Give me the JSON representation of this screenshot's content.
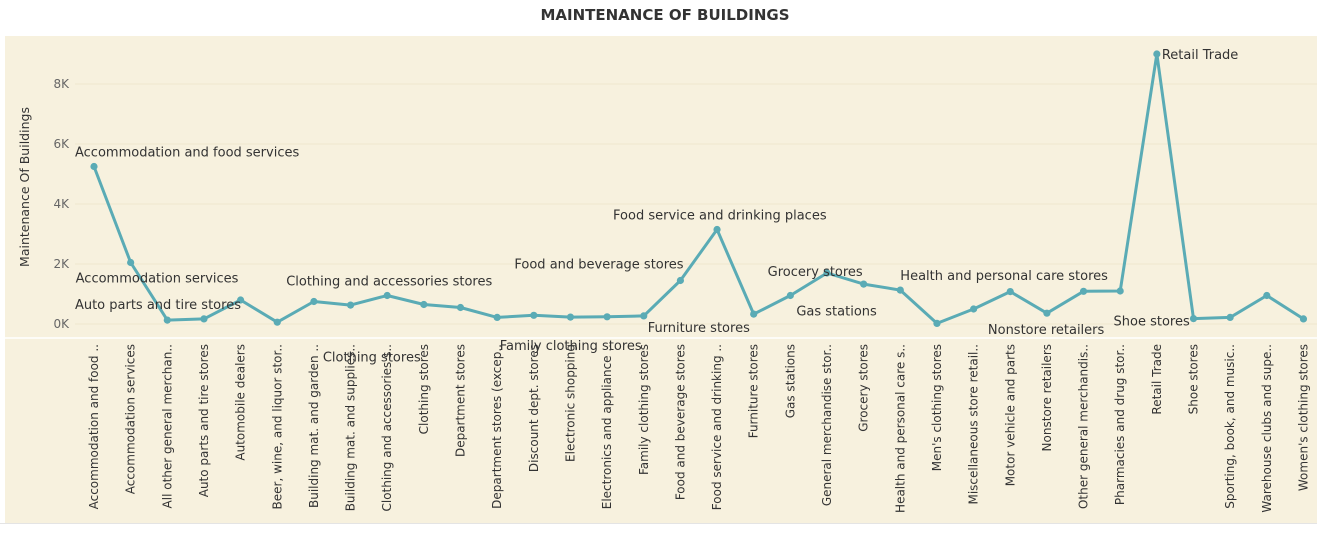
{
  "chart_data": {
    "type": "line",
    "title": "MAINTENANCE OF BUILDINGS",
    "xlabel": "",
    "ylabel": "Maintenance Of Buildings",
    "ylim": [
      -700,
      9300
    ],
    "yticks": [
      0,
      2000,
      4000,
      6000,
      8000
    ],
    "ytick_labels": [
      "0K",
      "2K",
      "4K",
      "6K",
      "8K"
    ],
    "grid": true,
    "line_color": "#5aabb5",
    "plot_background": "#f7f1de",
    "categories": [
      "Accommodation and food ..",
      "Accommodation services",
      "All other general merchan..",
      "Auto parts and tire stores",
      "Automobile dealers",
      "Beer, wine, and liquor stor..",
      "Building mat. and garden ..",
      "Building mat. and supplies..",
      "Clothing and accessories s..",
      "Clothing stores",
      "Department stores",
      "Department stores (excep..",
      "Discount dept. stores",
      "Electronic shopping",
      "Electronics and appliance ..",
      "Family clothing stores",
      "Food and beverage stores",
      "Food service and drinking ..",
      "Furniture stores",
      "Gas stations",
      "General merchandise stor..",
      "Grocery stores",
      "Health and personal care s..",
      "Men's clothing stores",
      "Miscellaneous store retail..",
      "Motor vehicle and parts",
      "Nonstore retailers",
      "Other general merchandis..",
      "Pharmacies and drug stor..",
      "Retail Trade",
      "Shoe stores",
      "Sporting, book, and music..",
      "Warehouse clubs and supe..",
      "Women's clothing stores"
    ],
    "values": [
      5250,
      2050,
      130,
      170,
      800,
      60,
      750,
      630,
      950,
      650,
      550,
      220,
      290,
      230,
      240,
      270,
      1450,
      3150,
      330,
      950,
      1700,
      1330,
      1130,
      20,
      500,
      1080,
      360,
      1090,
      1100,
      9000,
      180,
      220,
      950,
      170
    ],
    "annotations": [
      {
        "index": 0,
        "text": "Accommodation and food services"
      },
      {
        "index": 1,
        "text": "Accommodation services"
      },
      {
        "index": 3,
        "text": "Auto parts and tire stores"
      },
      {
        "index": 8,
        "text": "Clothing and accessories stores"
      },
      {
        "index": 9,
        "text": "Clothing stores"
      },
      {
        "index": 15,
        "text": "Family clothing stores"
      },
      {
        "index": 16,
        "text": "Food and beverage stores"
      },
      {
        "index": 17,
        "text": "Food service and drinking places"
      },
      {
        "index": 18,
        "text": "Furniture stores"
      },
      {
        "index": 19,
        "text": "Gas stations"
      },
      {
        "index": 21,
        "text": "Grocery stores"
      },
      {
        "index": 22,
        "text": "Health and personal care stores"
      },
      {
        "index": 26,
        "text": "Nonstore retailers"
      },
      {
        "index": 29,
        "text": "Retail Trade"
      },
      {
        "index": 30,
        "text": "Shoe stores"
      }
    ]
  }
}
